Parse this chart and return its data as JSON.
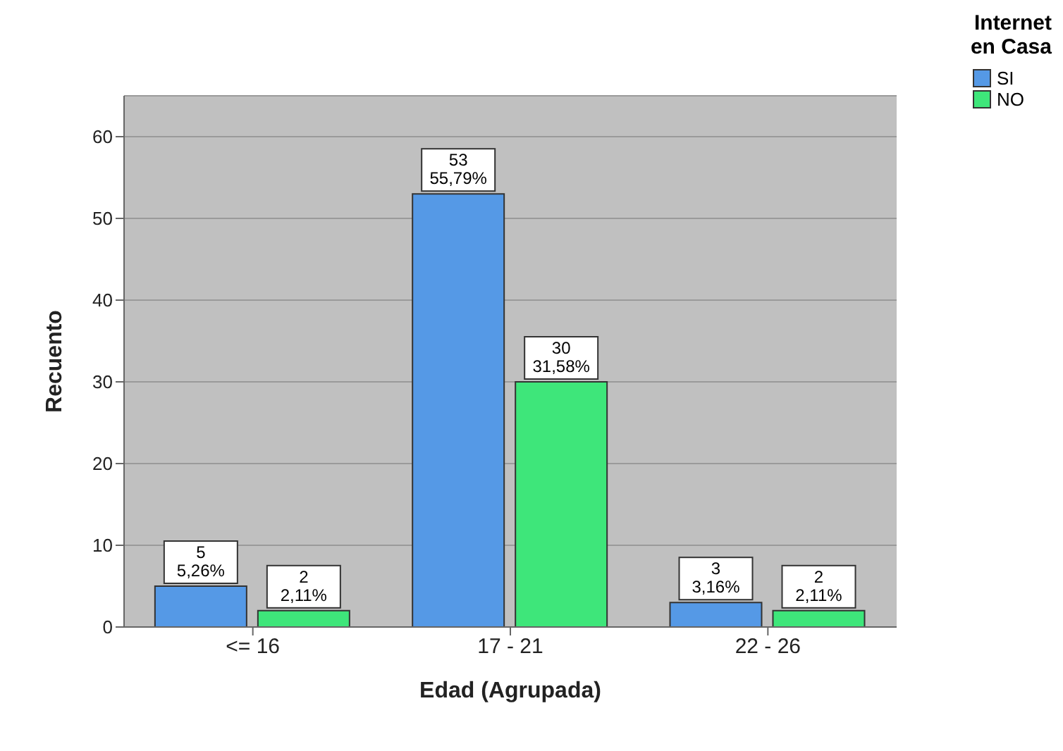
{
  "chart_data": {
    "type": "bar",
    "xlabel": "Edad (Agrupada)",
    "ylabel": "Recuento",
    "legend_title": "Internet en Casa",
    "categories": [
      "<= 16",
      "17 - 21",
      "22 - 26"
    ],
    "series": [
      {
        "name": "SI",
        "color": "#5599e6",
        "values": [
          5,
          53,
          3
        ],
        "value_labels": [
          "5\n5,26%",
          "53\n55,79%",
          "3\n3,16%"
        ]
      },
      {
        "name": "NO",
        "color": "#3ee67a",
        "values": [
          2,
          30,
          2
        ],
        "value_labels": [
          "2\n2,11%",
          "30\n31,58%",
          "2\n2,11%"
        ]
      }
    ],
    "ylim": [
      0,
      65
    ],
    "yticks": [
      0,
      10,
      20,
      30,
      40,
      50,
      60
    ],
    "grid": "y",
    "legend": "top right"
  }
}
